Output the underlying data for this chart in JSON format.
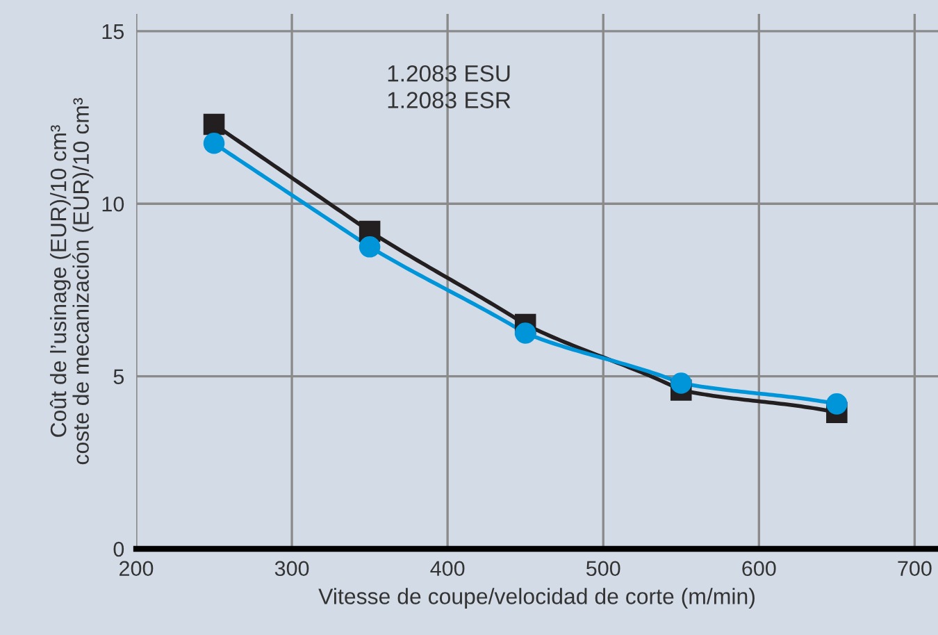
{
  "chart_data": {
    "type": "line",
    "xlabel": "Vitesse de coupe/velocidad de corte (m/min)",
    "ylabel": "Coût de l’usinage (EUR)/10 cm³\ncoste de mecanización (EUR)/10 cm³",
    "x": [
      250,
      350,
      450,
      550,
      650
    ],
    "series": [
      {
        "color": "#231f20",
        "marker": "square",
        "values": [
          12.3,
          9.2,
          6.5,
          4.6,
          3.95
        ]
      },
      {
        "color": "#0095d9",
        "marker": "circle",
        "values": [
          11.75,
          8.75,
          6.25,
          4.8,
          4.2
        ]
      }
    ],
    "annotations": [
      "1.2083 ESU\n1.2083 ESR"
    ],
    "xlim": [
      200,
      715
    ],
    "ylim": [
      0,
      15.5
    ],
    "xticks": [
      200,
      300,
      400,
      500,
      600,
      700
    ],
    "yticks": [
      0,
      5,
      10,
      15
    ],
    "grid": true,
    "line_style": "solid"
  }
}
